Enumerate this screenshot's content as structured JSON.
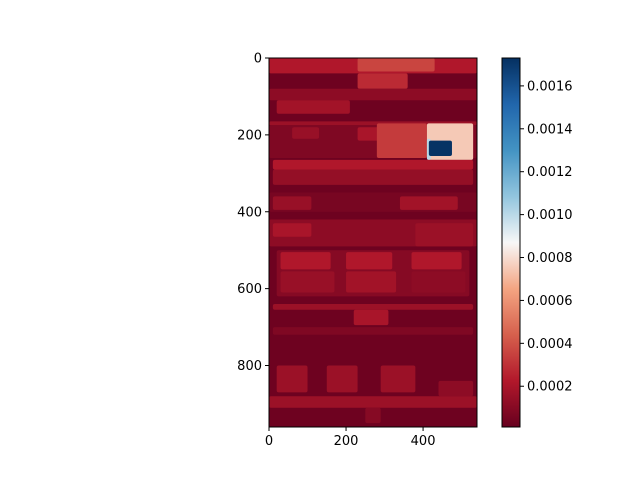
{
  "chart_data": {
    "type": "heatmap",
    "title": "",
    "xlabel": "",
    "ylabel": "",
    "xlim": [
      0,
      540
    ],
    "ylim": [
      960,
      0
    ],
    "x_ticks": [
      0,
      200,
      400
    ],
    "y_ticks": [
      0,
      200,
      400,
      600,
      800
    ],
    "colormap": "RdBu",
    "background_value": 3e-05,
    "colorbar": {
      "range": [
        1e-05,
        0.00173
      ],
      "ticks": [
        "0.0002",
        "0.0004",
        "0.0006",
        "0.0008",
        "0.0010",
        "0.0012",
        "0.0014",
        "0.0016"
      ],
      "tick_values": [
        0.0002,
        0.0004,
        0.0006,
        0.0008,
        0.001,
        0.0012,
        0.0014,
        0.0016
      ]
    },
    "regions": [
      {
        "x": [
          0,
          540
        ],
        "y": [
          0,
          40
        ],
        "value": 0.00022
      },
      {
        "x": [
          230,
          430
        ],
        "y": [
          0,
          35
        ],
        "value": 0.00036
      },
      {
        "x": [
          230,
          360
        ],
        "y": [
          40,
          80
        ],
        "value": 0.00028
      },
      {
        "x": [
          0,
          540
        ],
        "y": [
          80,
          110
        ],
        "value": 0.00012
      },
      {
        "x": [
          20,
          210
        ],
        "y": [
          110,
          145
        ],
        "value": 0.00018
      },
      {
        "x": [
          0,
          540
        ],
        "y": [
          165,
          175
        ],
        "value": 0.00016
      },
      {
        "x": [
          0,
          540
        ],
        "y": [
          175,
          260
        ],
        "value": 8e-05
      },
      {
        "x": [
          60,
          130
        ],
        "y": [
          180,
          210
        ],
        "value": 0.00015
      },
      {
        "x": [
          230,
          290
        ],
        "y": [
          180,
          215
        ],
        "value": 0.0002
      },
      {
        "x": [
          280,
          410
        ],
        "y": [
          170,
          260
        ],
        "value": 0.00033
      },
      {
        "x": [
          410,
          530
        ],
        "y": [
          170,
          265
        ],
        "value": 0.00075
      },
      {
        "x": [
          410,
          420
        ],
        "y": [
          210,
          265
        ],
        "value": 0.001
      },
      {
        "x": [
          415,
          475
        ],
        "y": [
          215,
          255
        ],
        "value": 0.00172
      },
      {
        "x": [
          10,
          530
        ],
        "y": [
          265,
          290
        ],
        "value": 0.00022
      },
      {
        "x": [
          10,
          530
        ],
        "y": [
          290,
          330
        ],
        "value": 0.00014
      },
      {
        "x": [
          0,
          540
        ],
        "y": [
          350,
          400
        ],
        "value": 6e-05
      },
      {
        "x": [
          10,
          110
        ],
        "y": [
          360,
          395
        ],
        "value": 0.00015
      },
      {
        "x": [
          340,
          490
        ],
        "y": [
          360,
          395
        ],
        "value": 0.00018
      },
      {
        "x": [
          0,
          540
        ],
        "y": [
          420,
          490
        ],
        "value": 0.00012
      },
      {
        "x": [
          10,
          110
        ],
        "y": [
          430,
          465
        ],
        "value": 0.0002
      },
      {
        "x": [
          380,
          530
        ],
        "y": [
          430,
          490
        ],
        "value": 0.00016
      },
      {
        "x": [
          20,
          520
        ],
        "y": [
          500,
          620
        ],
        "value": 0.0001
      },
      {
        "x": [
          30,
          160
        ],
        "y": [
          505,
          550
        ],
        "value": 0.00022
      },
      {
        "x": [
          30,
          170
        ],
        "y": [
          555,
          610
        ],
        "value": 0.00015
      },
      {
        "x": [
          200,
          320
        ],
        "y": [
          505,
          550
        ],
        "value": 0.00022
      },
      {
        "x": [
          200,
          330
        ],
        "y": [
          555,
          610
        ],
        "value": 0.00018
      },
      {
        "x": [
          370,
          500
        ],
        "y": [
          505,
          550
        ],
        "value": 0.00022
      },
      {
        "x": [
          370,
          510
        ],
        "y": [
          555,
          610
        ],
        "value": 0.00012
      },
      {
        "x": [
          10,
          530
        ],
        "y": [
          640,
          655
        ],
        "value": 0.00016
      },
      {
        "x": [
          220,
          310
        ],
        "y": [
          655,
          695
        ],
        "value": 0.0002
      },
      {
        "x": [
          10,
          530
        ],
        "y": [
          700,
          720
        ],
        "value": 8e-05
      },
      {
        "x": [
          20,
          100
        ],
        "y": [
          800,
          870
        ],
        "value": 0.00016
      },
      {
        "x": [
          150,
          230
        ],
        "y": [
          800,
          870
        ],
        "value": 0.00016
      },
      {
        "x": [
          290,
          380
        ],
        "y": [
          800,
          870
        ],
        "value": 0.00016
      },
      {
        "x": [
          440,
          530
        ],
        "y": [
          840,
          880
        ],
        "value": 0.00012
      },
      {
        "x": [
          0,
          540
        ],
        "y": [
          880,
          910
        ],
        "value": 0.00016
      },
      {
        "x": [
          250,
          290
        ],
        "y": [
          910,
          950
        ],
        "value": 0.0001
      }
    ]
  }
}
